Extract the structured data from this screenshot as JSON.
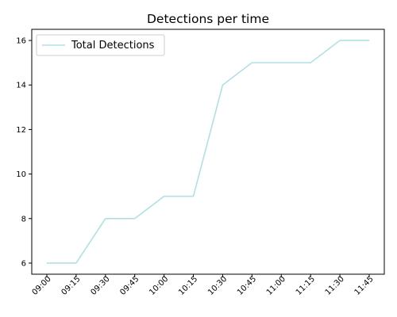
{
  "chart_data": {
    "type": "line",
    "title": "Detections per time",
    "xlabel": "",
    "ylabel": "",
    "categories": [
      "09:00",
      "09:15",
      "09:30",
      "09:45",
      "10:00",
      "10:15",
      "10:30",
      "10:45",
      "11:00",
      "11:15",
      "11:30",
      "11:45"
    ],
    "series": [
      {
        "name": "Total Detections",
        "values": [
          6,
          6,
          8,
          8,
          9,
          9,
          14,
          15,
          15,
          15,
          16,
          16
        ],
        "color": "#b0e0e6"
      }
    ],
    "ylim": [
      5.5,
      16.5
    ],
    "yticks": [
      "6",
      "8",
      "10",
      "12",
      "14",
      "16"
    ],
    "grid": false,
    "legend": "upper-left"
  }
}
